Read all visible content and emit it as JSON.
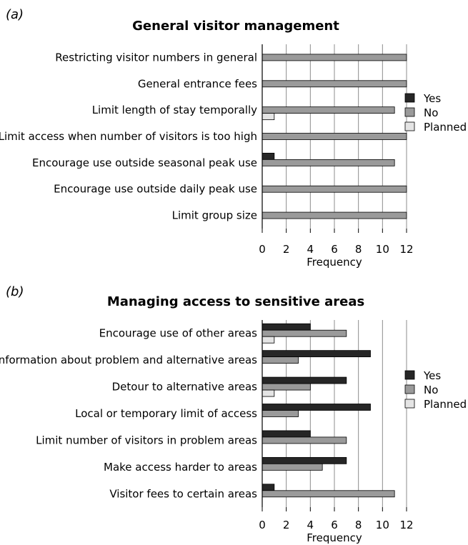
{
  "chart_data": [
    {
      "panel": "(a)",
      "type": "bar",
      "orientation": "horizontal",
      "title": "General visitor management",
      "xlabel": "Frequency",
      "ylabel": "",
      "xlim": [
        0,
        12
      ],
      "xticks": [
        "0",
        "2",
        "4",
        "6",
        "8",
        "10",
        "12"
      ],
      "grid": "vertical",
      "legend_position": "right",
      "categories": [
        "Restricting visitor numbers in general",
        "General entrance fees",
        "Limit length of stay  temporally",
        "Limit access when number of visitors is too high",
        "Encourage use outside seasonal peak use",
        "Encourage use outside daily peak use",
        "Limit group size"
      ],
      "series": [
        {
          "name": "Yes",
          "color": "#262626",
          "values": [
            0,
            0,
            0,
            0,
            1,
            0,
            0
          ]
        },
        {
          "name": "No",
          "color": "#9a9a9a",
          "values": [
            12,
            12,
            11,
            12,
            11,
            12,
            12
          ]
        },
        {
          "name": "Planned",
          "color": "#e4e4e4",
          "values": [
            0,
            0,
            1,
            0,
            0,
            0,
            0
          ]
        }
      ]
    },
    {
      "panel": "(b)",
      "type": "bar",
      "orientation": "horizontal",
      "title": "Managing access to sensitive areas",
      "xlabel": "Frequency",
      "ylabel": "",
      "xlim": [
        0,
        12
      ],
      "xticks": [
        "0",
        "2",
        "4",
        "6",
        "8",
        "10",
        "12"
      ],
      "grid": "vertical",
      "legend_position": "right",
      "categories": [
        "Encourage use of other areas",
        "Information about problem and alternative areas",
        "Detour to alternative areas",
        "Local or temporary limit of access",
        "Limit number of visitors in problem areas",
        "Make access harder to areas",
        "Visitor fees  to certain areas"
      ],
      "series": [
        {
          "name": "Yes",
          "color": "#262626",
          "values": [
            4,
            9,
            7,
            9,
            4,
            7,
            1
          ]
        },
        {
          "name": "No",
          "color": "#9a9a9a",
          "values": [
            7,
            3,
            4,
            3,
            7,
            5,
            11
          ]
        },
        {
          "name": "Planned",
          "color": "#e4e4e4",
          "values": [
            1,
            0,
            1,
            0,
            0,
            0,
            0
          ]
        }
      ]
    }
  ]
}
